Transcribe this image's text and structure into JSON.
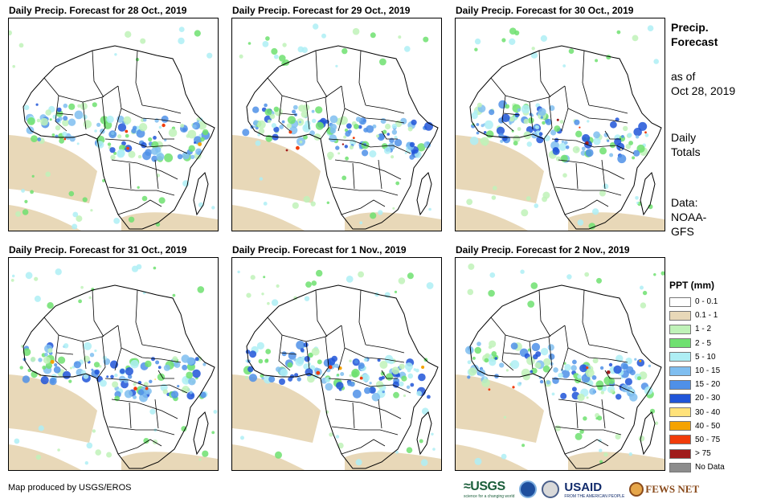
{
  "panels": [
    {
      "title": "Daily Precip. Forecast for 28 Oct., 2019"
    },
    {
      "title": "Daily Precip. Forecast for 29 Oct., 2019"
    },
    {
      "title": "Daily Precip. Forecast for 30 Oct., 2019"
    },
    {
      "title": "Daily Precip. Forecast for 31 Oct., 2019"
    },
    {
      "title": "Daily Precip. Forecast for 1 Nov., 2019"
    },
    {
      "title": "Daily Precip. Forecast for 2 Nov., 2019"
    }
  ],
  "sidebar": {
    "title_line1": "Precip.",
    "title_line2": "Forecast",
    "asof_line1": "as of",
    "asof_line2": "Oct 28, 2019",
    "daily_line1": "Daily",
    "daily_line2": "Totals",
    "data_line1": "Data:",
    "data_line2": "NOAA-",
    "data_line3": "GFS"
  },
  "legend": {
    "title": "PPT (mm)",
    "items": [
      {
        "label": "0 - 0.1",
        "color": "#ffffff"
      },
      {
        "label": "0.1 - 1",
        "color": "#e8d8b8"
      },
      {
        "label": "1 - 2",
        "color": "#bff2b8"
      },
      {
        "label": "2 - 5",
        "color": "#6fe070"
      },
      {
        "label": "5 - 10",
        "color": "#aeeef4"
      },
      {
        "label": "10 - 15",
        "color": "#7fbef0"
      },
      {
        "label": "15 - 20",
        "color": "#4f90e8"
      },
      {
        "label": "20 - 30",
        "color": "#2055d8"
      },
      {
        "label": "30 - 40",
        "color": "#ffe27a"
      },
      {
        "label": "40 - 50",
        "color": "#f5a300"
      },
      {
        "label": "50 - 75",
        "color": "#f03c0a"
      },
      {
        "label": "> 75",
        "color": "#a01c1c"
      },
      {
        "label": "No Data",
        "color": "#8c8c8c"
      }
    ]
  },
  "footer": {
    "credit": "Map produced by USGS/EROS",
    "logo_usgs": "≈USGS",
    "logo_usgs_tagline": "science for a changing world",
    "logo_usaid": "USAID",
    "logo_usaid_tagline": "FROM THE AMERICAN PEOPLE",
    "logo_fews": "FEWS NET"
  }
}
